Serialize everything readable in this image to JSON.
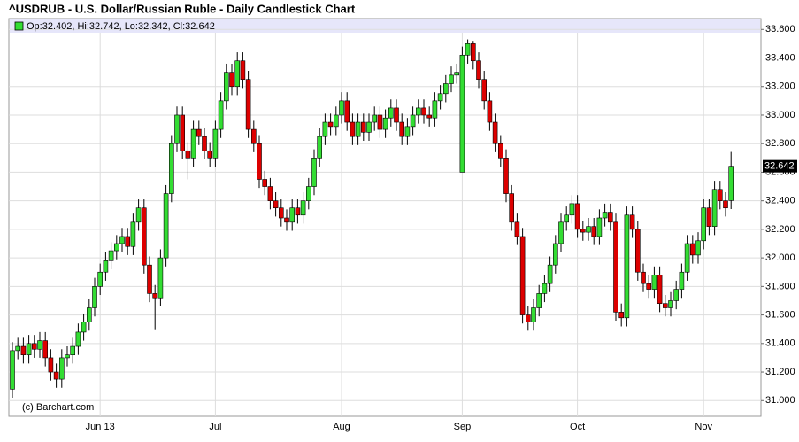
{
  "chart_data": {
    "type": "candlestick",
    "title": "^USDRUB - U.S. Dollar/Russian Ruble - Daily Candlestick Chart",
    "legend": "Op:32.402, Hi:32.742, Lo:32.342, Cl:32.642",
    "source": "(c) Barchart.com",
    "up_color": "#33dd33",
    "down_color": "#dd0000",
    "grid": true,
    "ylim": [
      30.89,
      33.67
    ],
    "yticks": [
      {
        "value": 31.0,
        "label": "31.000"
      },
      {
        "value": 31.2,
        "label": "31.200"
      },
      {
        "value": 31.4,
        "label": "31.400"
      },
      {
        "value": 31.6,
        "label": "31.600"
      },
      {
        "value": 31.8,
        "label": "31.800"
      },
      {
        "value": 32.0,
        "label": "32.000"
      },
      {
        "value": 32.2,
        "label": "32.200"
      },
      {
        "value": 32.4,
        "label": "32.400"
      },
      {
        "value": 32.6,
        "label": "32.600"
      },
      {
        "value": 32.8,
        "label": "32.800"
      },
      {
        "value": 33.0,
        "label": "33.000"
      },
      {
        "value": 33.2,
        "label": "33.200"
      },
      {
        "value": 33.4,
        "label": "33.400"
      },
      {
        "value": 33.6,
        "label": "33.600"
      }
    ],
    "categories": [
      null,
      null,
      null,
      null,
      null,
      null,
      null,
      null,
      null,
      null,
      null,
      null,
      null,
      null,
      null,
      null,
      "Jun 13",
      null,
      null,
      null,
      null,
      null,
      null,
      null,
      null,
      null,
      null,
      null,
      null,
      null,
      null,
      null,
      null,
      null,
      null,
      null,
      null,
      "Jul",
      null,
      null,
      null,
      null,
      null,
      null,
      null,
      null,
      null,
      null,
      null,
      null,
      null,
      null,
      null,
      null,
      null,
      null,
      null,
      null,
      null,
      null,
      "Aug",
      null,
      null,
      null,
      null,
      null,
      null,
      null,
      null,
      null,
      null,
      null,
      null,
      null,
      null,
      null,
      null,
      null,
      null,
      null,
      null,
      null,
      "Sep",
      null,
      null,
      null,
      null,
      null,
      null,
      null,
      null,
      null,
      null,
      null,
      null,
      null,
      null,
      null,
      null,
      null,
      null,
      null,
      null,
      "Oct",
      null,
      null,
      null,
      null,
      null,
      null,
      null,
      null,
      null,
      null,
      null,
      null,
      null,
      null,
      null,
      null,
      null,
      null,
      null,
      null,
      null,
      null,
      "Nov",
      null,
      null,
      null,
      null,
      null
    ],
    "open": [
      31.08,
      31.35,
      31.38,
      31.32,
      31.4,
      31.36,
      31.42,
      31.3,
      31.2,
      31.15,
      31.3,
      31.32,
      31.38,
      31.48,
      31.55,
      31.65,
      31.8,
      31.9,
      31.98,
      32.05,
      32.1,
      32.15,
      32.08,
      32.25,
      32.35,
      31.95,
      31.75,
      31.72,
      32.0,
      32.45,
      32.8,
      33.0,
      32.75,
      32.7,
      32.9,
      32.85,
      32.75,
      32.7,
      32.9,
      33.1,
      33.3,
      33.2,
      33.38,
      33.25,
      32.9,
      32.8,
      32.55,
      32.5,
      32.4,
      32.35,
      32.28,
      32.25,
      32.35,
      32.3,
      32.4,
      32.5,
      32.7,
      32.85,
      32.95,
      32.92,
      33.0,
      33.1,
      32.95,
      32.85,
      32.95,
      32.88,
      32.95,
      33.0,
      32.9,
      32.98,
      33.05,
      32.95,
      32.85,
      32.92,
      33.0,
      33.05,
      33.0,
      32.98,
      33.1,
      33.15,
      33.22,
      33.28,
      32.6,
      33.42,
      33.5,
      33.38,
      33.25,
      33.1,
      32.95,
      32.8,
      32.7,
      32.45,
      32.25,
      32.15,
      31.6,
      31.55,
      31.65,
      31.75,
      31.82,
      31.95,
      32.1,
      32.25,
      32.3,
      32.38,
      32.2,
      32.18,
      32.22,
      32.15,
      32.28,
      32.32,
      32.25,
      31.62,
      31.58,
      32.3,
      32.2,
      31.9,
      31.82,
      31.78,
      31.88,
      31.68,
      31.65,
      31.7,
      31.78,
      31.9,
      32.1,
      32.02,
      32.12,
      32.35,
      32.22,
      32.48,
      32.4,
      32.402
    ],
    "high": [
      31.41,
      31.44,
      31.44,
      31.46,
      31.46,
      31.48,
      31.48,
      31.36,
      31.26,
      31.36,
      31.38,
      31.44,
      31.54,
      31.61,
      31.71,
      31.86,
      31.96,
      32.04,
      32.11,
      32.16,
      32.21,
      32.21,
      32.31,
      32.41,
      32.41,
      32.01,
      31.81,
      32.06,
      32.51,
      32.86,
      33.06,
      33.06,
      32.81,
      32.96,
      32.96,
      32.91,
      32.81,
      32.96,
      33.16,
      33.36,
      33.36,
      33.44,
      33.44,
      33.31,
      32.96,
      32.86,
      32.61,
      32.56,
      32.46,
      32.41,
      32.34,
      32.41,
      32.41,
      32.46,
      32.56,
      32.76,
      32.91,
      33.01,
      33.01,
      33.06,
      33.16,
      33.16,
      33.01,
      33.01,
      33.01,
      33.01,
      33.06,
      33.06,
      33.04,
      33.11,
      33.11,
      33.01,
      32.98,
      33.06,
      33.11,
      33.11,
      33.06,
      33.16,
      33.21,
      33.28,
      33.34,
      33.36,
      33.48,
      33.53,
      33.52,
      33.44,
      33.31,
      33.16,
      33.01,
      32.86,
      32.76,
      32.51,
      32.31,
      32.21,
      31.66,
      31.71,
      31.81,
      31.88,
      32.01,
      32.16,
      32.31,
      32.36,
      32.44,
      32.44,
      32.26,
      32.28,
      32.28,
      32.34,
      32.38,
      32.38,
      32.31,
      31.68,
      32.36,
      32.36,
      32.26,
      31.96,
      31.88,
      31.94,
      31.94,
      31.74,
      31.76,
      31.84,
      31.96,
      32.16,
      32.16,
      32.18,
      32.41,
      32.41,
      32.54,
      32.54,
      32.46,
      32.742
    ],
    "low": [
      31.02,
      31.29,
      31.26,
      31.26,
      31.3,
      31.3,
      31.24,
      31.14,
      31.09,
      31.09,
      31.24,
      31.26,
      31.32,
      31.42,
      31.49,
      31.59,
      31.74,
      31.84,
      31.92,
      31.99,
      32.04,
      32.02,
      32.02,
      32.19,
      31.89,
      31.69,
      31.5,
      31.66,
      31.94,
      32.39,
      32.74,
      32.69,
      32.55,
      32.64,
      32.79,
      32.69,
      32.64,
      32.64,
      32.84,
      33.04,
      33.14,
      33.14,
      33.19,
      32.84,
      32.74,
      32.49,
      32.44,
      32.34,
      32.29,
      32.22,
      32.19,
      32.19,
      32.24,
      32.24,
      32.34,
      32.44,
      32.64,
      32.79,
      32.86,
      32.86,
      32.94,
      32.89,
      32.79,
      32.79,
      32.82,
      32.82,
      32.89,
      32.84,
      32.84,
      32.92,
      32.89,
      32.79,
      32.79,
      32.86,
      32.94,
      32.94,
      32.92,
      32.92,
      33.04,
      33.09,
      33.16,
      33.22,
      32.6,
      33.36,
      33.32,
      33.19,
      33.04,
      32.89,
      32.74,
      32.64,
      32.39,
      32.19,
      32.09,
      31.54,
      31.49,
      31.49,
      31.59,
      31.69,
      31.76,
      31.89,
      32.04,
      32.19,
      32.24,
      32.14,
      32.12,
      32.12,
      32.09,
      32.09,
      32.22,
      32.19,
      31.56,
      31.52,
      31.52,
      32.14,
      31.84,
      31.76,
      31.72,
      31.72,
      31.62,
      31.59,
      31.59,
      31.64,
      31.72,
      31.84,
      31.96,
      31.96,
      32.06,
      32.16,
      32.16,
      32.34,
      32.29,
      32.342
    ],
    "close": [
      31.35,
      31.38,
      31.32,
      31.4,
      31.36,
      31.42,
      31.3,
      31.2,
      31.15,
      31.3,
      31.32,
      31.38,
      31.48,
      31.55,
      31.65,
      31.8,
      31.9,
      31.98,
      32.05,
      32.1,
      32.15,
      32.08,
      32.25,
      32.35,
      31.95,
      31.75,
      31.72,
      32.0,
      32.45,
      32.8,
      33.0,
      32.75,
      32.7,
      32.9,
      32.85,
      32.75,
      32.7,
      32.9,
      33.1,
      33.3,
      33.2,
      33.38,
      33.25,
      32.9,
      32.8,
      32.55,
      32.5,
      32.4,
      32.35,
      32.28,
      32.25,
      32.35,
      32.3,
      32.4,
      32.5,
      32.7,
      32.85,
      32.95,
      32.92,
      33.0,
      33.1,
      32.95,
      32.85,
      32.95,
      32.88,
      32.95,
      33.0,
      32.9,
      32.98,
      33.05,
      32.95,
      32.85,
      32.92,
      33.0,
      33.05,
      33.0,
      32.98,
      33.1,
      33.15,
      33.22,
      33.28,
      33.3,
      33.42,
      33.5,
      33.38,
      33.25,
      33.1,
      32.95,
      32.8,
      32.7,
      32.45,
      32.25,
      32.15,
      31.6,
      31.55,
      31.65,
      31.75,
      31.82,
      31.95,
      32.1,
      32.25,
      32.3,
      32.38,
      32.2,
      32.18,
      32.22,
      32.15,
      32.28,
      32.32,
      32.25,
      31.62,
      31.58,
      32.3,
      32.2,
      31.9,
      31.82,
      31.78,
      31.88,
      31.68,
      31.65,
      31.7,
      31.78,
      31.9,
      32.1,
      32.02,
      32.12,
      32.35,
      32.22,
      32.48,
      32.4,
      32.35,
      32.642
    ]
  }
}
